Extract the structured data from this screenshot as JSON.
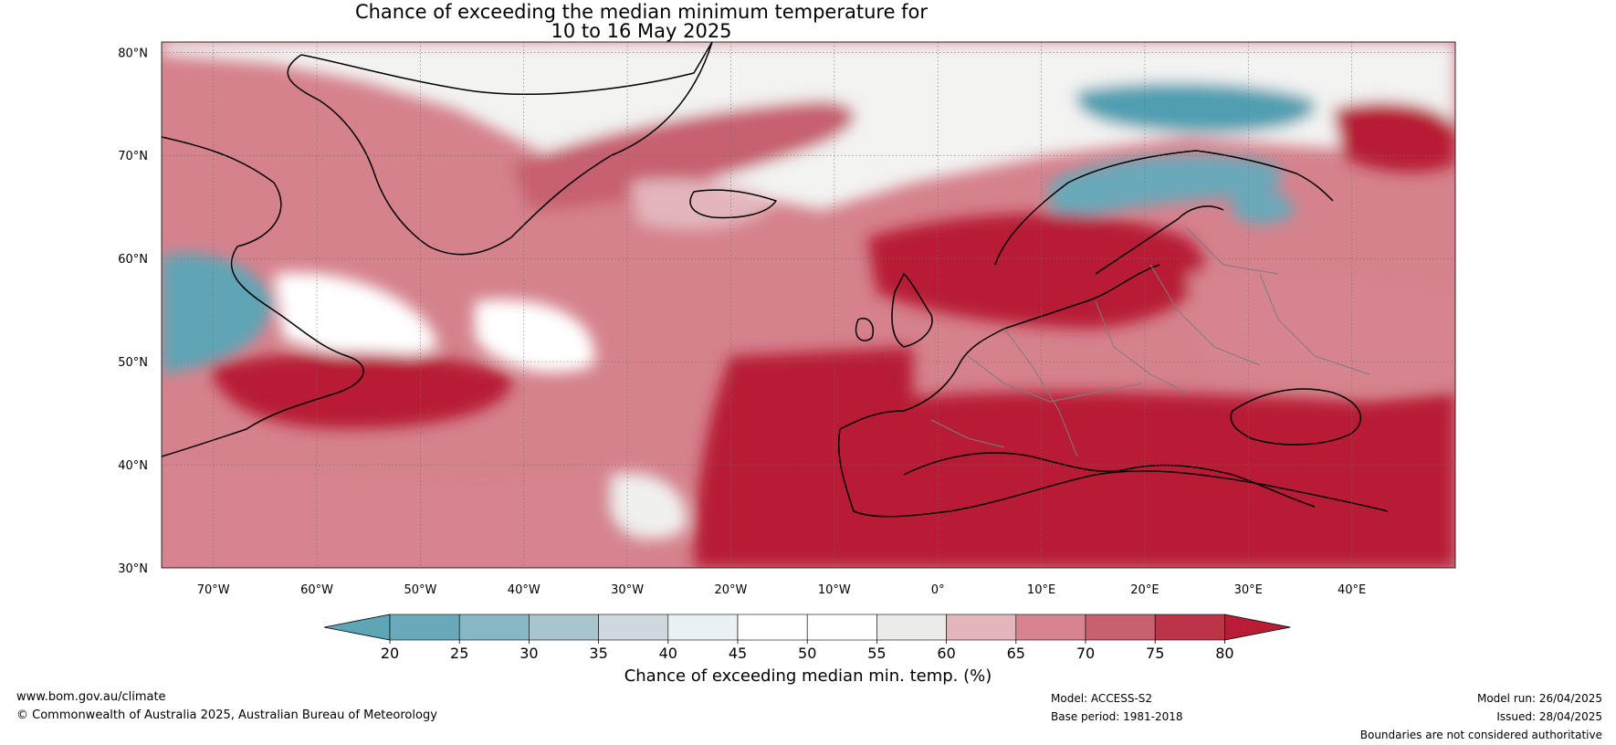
{
  "title_line1": "Chance of exceeding the median minimum temperature for",
  "title_line2": "10 to 16 May 2025",
  "map": {
    "lon_ticks": [
      "70°W",
      "60°W",
      "50°W",
      "40°W",
      "30°W",
      "20°W",
      "10°W",
      "0°",
      "10°E",
      "20°E",
      "30°E",
      "40°E"
    ],
    "lat_ticks": [
      "80°N",
      "70°N",
      "60°N",
      "50°N",
      "40°N",
      "30°N"
    ],
    "lon_range": [
      -75,
      50
    ],
    "lat_range": [
      30,
      81
    ],
    "land_colour": "#b81d35",
    "ocean_colour": "#d97f8b"
  },
  "colorbar": {
    "label": "Chance of exceeding median min. temp. (%)",
    "ticks": [
      "20",
      "25",
      "30",
      "35",
      "40",
      "45",
      "50",
      "55",
      "60",
      "65",
      "70",
      "75",
      "80"
    ],
    "colours": [
      "#5ea5b5",
      "#6aa9b9",
      "#87b7c4",
      "#a8c5cd",
      "#cfd9dd",
      "#e9f1f3",
      "#ffffff",
      "#ffffff",
      "#ebebea",
      "#e3b6bc",
      "#d6848f",
      "#c7616f",
      "#bb3447",
      "#b81d35"
    ]
  },
  "footer": {
    "website": "www.bom.gov.au/climate",
    "copyright": "© Commonwealth of Australia 2025, Australian Bureau of Meteorology",
    "model": "Model: ACCESS-S2",
    "base_period": "Base period: 1981-2018",
    "model_run": "Model run: 26/04/2025",
    "issued": "Issued: 28/04/2025",
    "disclaimer": "Boundaries are not considered authoritative"
  }
}
